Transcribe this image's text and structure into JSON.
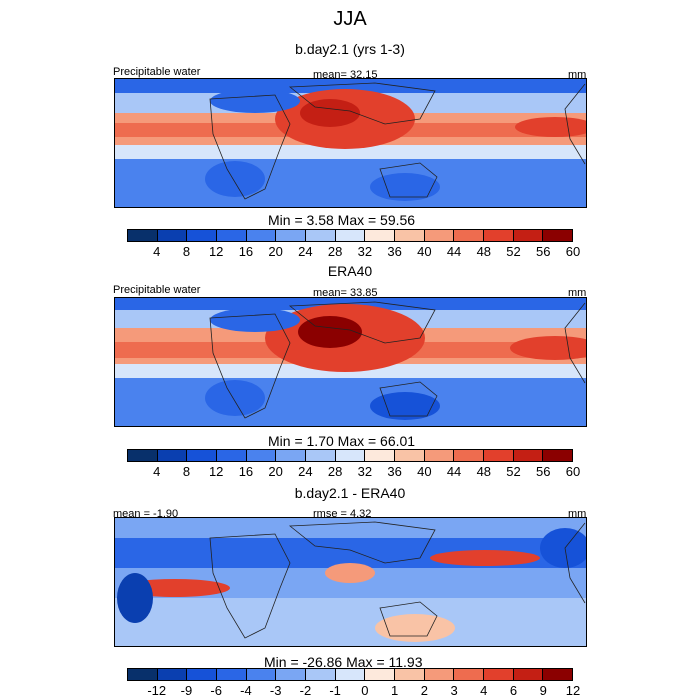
{
  "main_title": "JJA",
  "palette_precip": [
    "#08306b",
    "#0a3fb0",
    "#1652d8",
    "#2a66e6",
    "#4a82ee",
    "#7aa6f3",
    "#a9c7f7",
    "#d7e6fb",
    "#fde9dc",
    "#f9c3a6",
    "#f59a7a",
    "#ee6c4f",
    "#e2402c",
    "#c41f14",
    "#8b0000"
  ],
  "palette_diff": [
    "#08306b",
    "#0a3fb0",
    "#1652d8",
    "#2a66e6",
    "#4a82ee",
    "#7aa6f3",
    "#a9c7f7",
    "#d7e6fb",
    "#fde9dc",
    "#f9c3a6",
    "#f59a7a",
    "#ee6c4f",
    "#e2402c",
    "#c41f14",
    "#8b0000"
  ],
  "panels": [
    {
      "title": "b.day2.1 (yrs 1-3)",
      "left_label": "Precipitable water",
      "center_label": "mean=  32.15",
      "right_label": "mm",
      "minmax": "Min =   3.58 Max =  59.56",
      "ticks": [
        "4",
        "8",
        "12",
        "16",
        "20",
        "24",
        "28",
        "32",
        "36",
        "40",
        "44",
        "48",
        "52",
        "56",
        "60"
      ]
    },
    {
      "title": "ERA40",
      "left_label": "Precipitable water",
      "center_label": "mean=  33.85",
      "right_label": "mm",
      "minmax": "Min =   1.70 Max =  66.01",
      "ticks": [
        "4",
        "8",
        "12",
        "16",
        "20",
        "24",
        "28",
        "32",
        "36",
        "40",
        "44",
        "48",
        "52",
        "56",
        "60"
      ]
    },
    {
      "title": "b.day2.1 - ERA40",
      "left_label": "mean =  -1.90",
      "center_label": "rmse =   4.32",
      "right_label": "mm",
      "minmax": "Min = -26.86 Max =  11.93",
      "ticks": [
        "-12",
        "-9",
        "-6",
        "-4",
        "-3",
        "-2",
        "-1",
        "0",
        "1",
        "2",
        "3",
        "4",
        "6",
        "9",
        "12"
      ]
    }
  ],
  "chart_data": [
    {
      "type": "heatmap",
      "title": "b.day2.1 (yrs 1-3)",
      "variable": "Precipitable water",
      "units": "mm",
      "mean": 32.15,
      "min": 3.58,
      "max": 59.56,
      "levels": [
        4,
        8,
        12,
        16,
        20,
        24,
        28,
        32,
        36,
        40,
        44,
        48,
        52,
        56,
        60
      ]
    },
    {
      "type": "heatmap",
      "title": "ERA40",
      "variable": "Precipitable water",
      "units": "mm",
      "mean": 33.85,
      "min": 1.7,
      "max": 66.01,
      "levels": [
        4,
        8,
        12,
        16,
        20,
        24,
        28,
        32,
        36,
        40,
        44,
        48,
        52,
        56,
        60
      ]
    },
    {
      "type": "heatmap",
      "title": "b.day2.1 - ERA40",
      "units": "mm",
      "mean": -1.9,
      "rmse": 4.32,
      "min": -26.86,
      "max": 11.93,
      "levels": [
        -12,
        -9,
        -6,
        -4,
        -3,
        -2,
        -1,
        0,
        1,
        2,
        3,
        4,
        6,
        9,
        12
      ]
    }
  ]
}
